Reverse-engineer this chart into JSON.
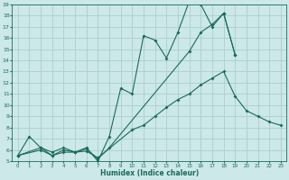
{
  "xlabel": "Humidex (Indice chaleur)",
  "bg_color": "#cce8e8",
  "grid_color": "#aacece",
  "line_color": "#1a6b5a",
  "xlim": [
    -0.5,
    23.5
  ],
  "ylim": [
    5,
    19
  ],
  "xticks": [
    0,
    1,
    2,
    3,
    4,
    5,
    6,
    7,
    8,
    9,
    10,
    11,
    12,
    13,
    14,
    15,
    16,
    17,
    18,
    19,
    20,
    21,
    22,
    23
  ],
  "yticks": [
    5,
    6,
    7,
    8,
    9,
    10,
    11,
    12,
    13,
    14,
    15,
    16,
    17,
    18,
    19
  ],
  "line1_x": [
    0,
    1,
    2,
    3,
    4,
    5,
    6,
    7,
    8,
    9,
    10,
    11,
    12,
    13,
    14,
    15,
    16,
    17,
    18,
    19
  ],
  "line1_y": [
    5.5,
    7.2,
    6.2,
    5.8,
    6.2,
    5.8,
    6.2,
    5.0,
    7.2,
    11.5,
    11.0,
    16.2,
    15.8,
    14.2,
    16.5,
    19.3,
    19.0,
    17.0,
    18.2,
    14.5
  ],
  "line2_x": [
    0,
    2,
    3,
    4,
    5,
    6,
    7,
    8,
    15,
    16,
    17,
    18,
    19
  ],
  "line2_y": [
    5.5,
    6.2,
    5.5,
    6.0,
    5.8,
    6.1,
    5.2,
    6.2,
    14.8,
    16.5,
    17.2,
    18.2,
    14.5
  ],
  "line2_break_after": 7,
  "line3_x": [
    0,
    2,
    3,
    4,
    5,
    6,
    7,
    10,
    11,
    12,
    13,
    14,
    15,
    16,
    17,
    18,
    19,
    20,
    21,
    22,
    23
  ],
  "line3_y": [
    5.5,
    6.0,
    5.5,
    5.8,
    5.8,
    5.9,
    5.3,
    7.8,
    8.2,
    9.0,
    9.8,
    10.5,
    11.0,
    11.8,
    12.4,
    13.0,
    10.8,
    9.5,
    9.0,
    8.5,
    8.2
  ]
}
